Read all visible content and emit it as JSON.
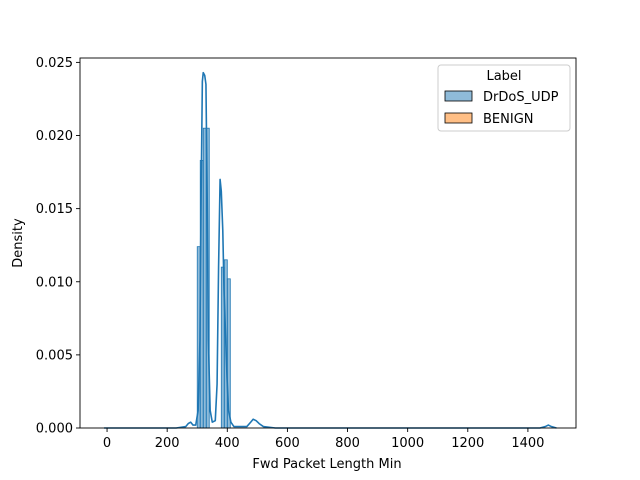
{
  "chart_data": {
    "type": "histogram-kde",
    "xlabel": "Fwd Packet Length Min",
    "ylabel": "Density",
    "xlim": [
      -90,
      1560
    ],
    "ylim": [
      0,
      0.0253
    ],
    "xticks": [
      0,
      200,
      400,
      600,
      800,
      1000,
      1200,
      1400
    ],
    "yticks": [
      0.0,
      0.005,
      0.01,
      0.015,
      0.02,
      0.025
    ],
    "ytick_labels": [
      "0.000",
      "0.005",
      "0.010",
      "0.015",
      "0.020",
      "0.025"
    ],
    "grid": false,
    "legend": {
      "title": "Label",
      "placement": "top-right",
      "entries": [
        {
          "name": "DrDoS_UDP",
          "color": "#1f77b4"
        },
        {
          "name": "BENIGN",
          "color": "#ff7f0e"
        }
      ]
    },
    "series": [
      {
        "name": "DrDoS_UDP",
        "color": "#1f77b4",
        "bars": [
          {
            "x0": 300,
            "x1": 310,
            "y": 0.0124
          },
          {
            "x0": 310,
            "x1": 320,
            "y": 0.0183
          },
          {
            "x0": 320,
            "x1": 330,
            "y": 0.0205
          },
          {
            "x0": 330,
            "x1": 340,
            "y": 0.0205
          },
          {
            "x0": 380,
            "x1": 390,
            "y": 0.011
          },
          {
            "x0": 390,
            "x1": 400,
            "y": 0.0115
          },
          {
            "x0": 400,
            "x1": 410,
            "y": 0.0102
          }
        ],
        "kde": [
          [
            -10,
            0
          ],
          [
            100,
            0
          ],
          [
            230,
            0
          ],
          [
            262,
            0.0001
          ],
          [
            270,
            0.0003
          ],
          [
            278,
            0.0004
          ],
          [
            286,
            0.0002
          ],
          [
            295,
            0.0002
          ],
          [
            303,
            0.0012
          ],
          [
            309,
            0.006
          ],
          [
            313,
            0.016
          ],
          [
            317,
            0.0237
          ],
          [
            320,
            0.0243
          ],
          [
            325,
            0.0241
          ],
          [
            329,
            0.0235
          ],
          [
            333,
            0.016
          ],
          [
            337,
            0.006
          ],
          [
            343,
            0.0012
          ],
          [
            350,
            0.0004
          ],
          [
            360,
            0.0005
          ],
          [
            366,
            0.003
          ],
          [
            371,
            0.011
          ],
          [
            376,
            0.017
          ],
          [
            380,
            0.0162
          ],
          [
            385,
            0.0135
          ],
          [
            389,
            0.0095
          ],
          [
            394,
            0.0065
          ],
          [
            399,
            0.0035
          ],
          [
            404,
            0.0012
          ],
          [
            412,
            0.0004
          ],
          [
            422,
            0.0001
          ],
          [
            440,
            0.0001
          ],
          [
            465,
            0.0001
          ],
          [
            478,
            0.0004
          ],
          [
            486,
            0.0006
          ],
          [
            496,
            0.0005
          ],
          [
            506,
            0.0003
          ],
          [
            520,
            0.0001
          ],
          [
            560,
            0
          ],
          [
            800,
            0
          ],
          [
            1200,
            0
          ],
          [
            1440,
            0
          ],
          [
            1458,
            0.0001
          ],
          [
            1468,
            0.0002
          ],
          [
            1478,
            0.0001
          ],
          [
            1495,
            0
          ]
        ]
      },
      {
        "name": "BENIGN",
        "color": "#ff7f0e",
        "bars": [],
        "kde": []
      }
    ]
  }
}
